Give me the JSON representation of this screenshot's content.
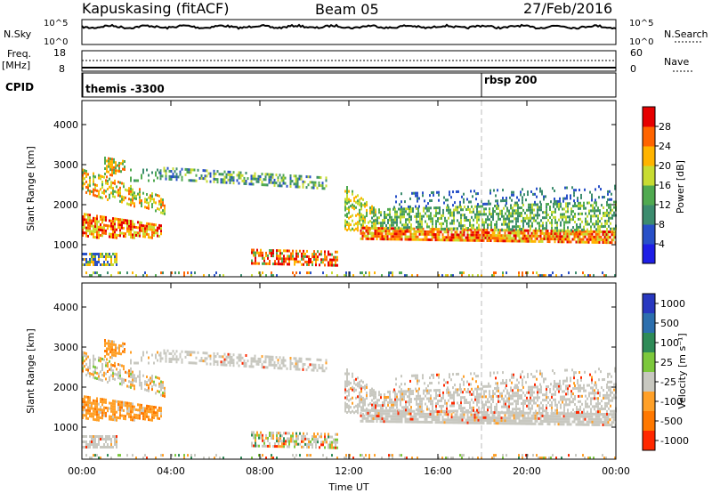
{
  "header": {
    "station": "Kapuskasing (fitACF)",
    "beam": "Beam 05",
    "date": "27/Feb/2016"
  },
  "panels": {
    "nsky_label": "N.Sky",
    "nsky_ticks": [
      "10^5",
      "10^0"
    ],
    "nsearch_label": "N.Search",
    "nsearch_ticks": [
      "10^5",
      "10^0"
    ],
    "freq_label": "Freq.",
    "freq_unit": "[MHz]",
    "freq_ticks": [
      "18",
      "8"
    ],
    "nave_label": "Nave",
    "nave_ticks": [
      "60",
      "0"
    ],
    "cpid_label": "CPID",
    "cpid_items": [
      "themis -3300",
      "rbsp 200"
    ]
  },
  "colors": {
    "power": [
      "#1e1ee6",
      "#2850c8",
      "#3c8c6e",
      "#50aa50",
      "#c8dc32",
      "#ffb400",
      "#ff6400",
      "#e60000"
    ],
    "velocity": [
      "#2838c0",
      "#2c6fae",
      "#2e8b57",
      "#7cc83c",
      "#c8c8c0",
      "#ffa028",
      "#ff7800",
      "#ff2800"
    ]
  },
  "chart_data": [
    {
      "type": "heatmap",
      "ylabel": "Slant Range [km]",
      "xlabel": "Time UT",
      "y_ticks": [
        "1000",
        "2000",
        "3000",
        "4000"
      ],
      "ylim": [
        200,
        4600
      ],
      "x_ticks": [
        "00:00",
        "04:00",
        "08:00",
        "12:00",
        "16:00",
        "20:00",
        "00:00"
      ],
      "x_range_hours": [
        0,
        24
      ],
      "colorbar": {
        "label": "Power [dB]",
        "ticks": [
          "4",
          "8",
          "12",
          "16",
          "20",
          "24",
          "28"
        ]
      }
    },
    {
      "type": "heatmap",
      "ylabel": "Slant Range [km]",
      "xlabel": "Time UT",
      "y_ticks": [
        "1000",
        "2000",
        "3000",
        "4000"
      ],
      "ylim": [
        200,
        4600
      ],
      "x_ticks": [
        "00:00",
        "04:00",
        "08:00",
        "12:00",
        "16:00",
        "20:00",
        "00:00"
      ],
      "x_range_hours": [
        0,
        24
      ],
      "colorbar": {
        "label": "Velocity [m s⁻¹]",
        "ticks": [
          "1000",
          "500",
          "100",
          "25",
          "-25",
          "-100",
          "-500",
          "-1000"
        ]
      }
    }
  ]
}
